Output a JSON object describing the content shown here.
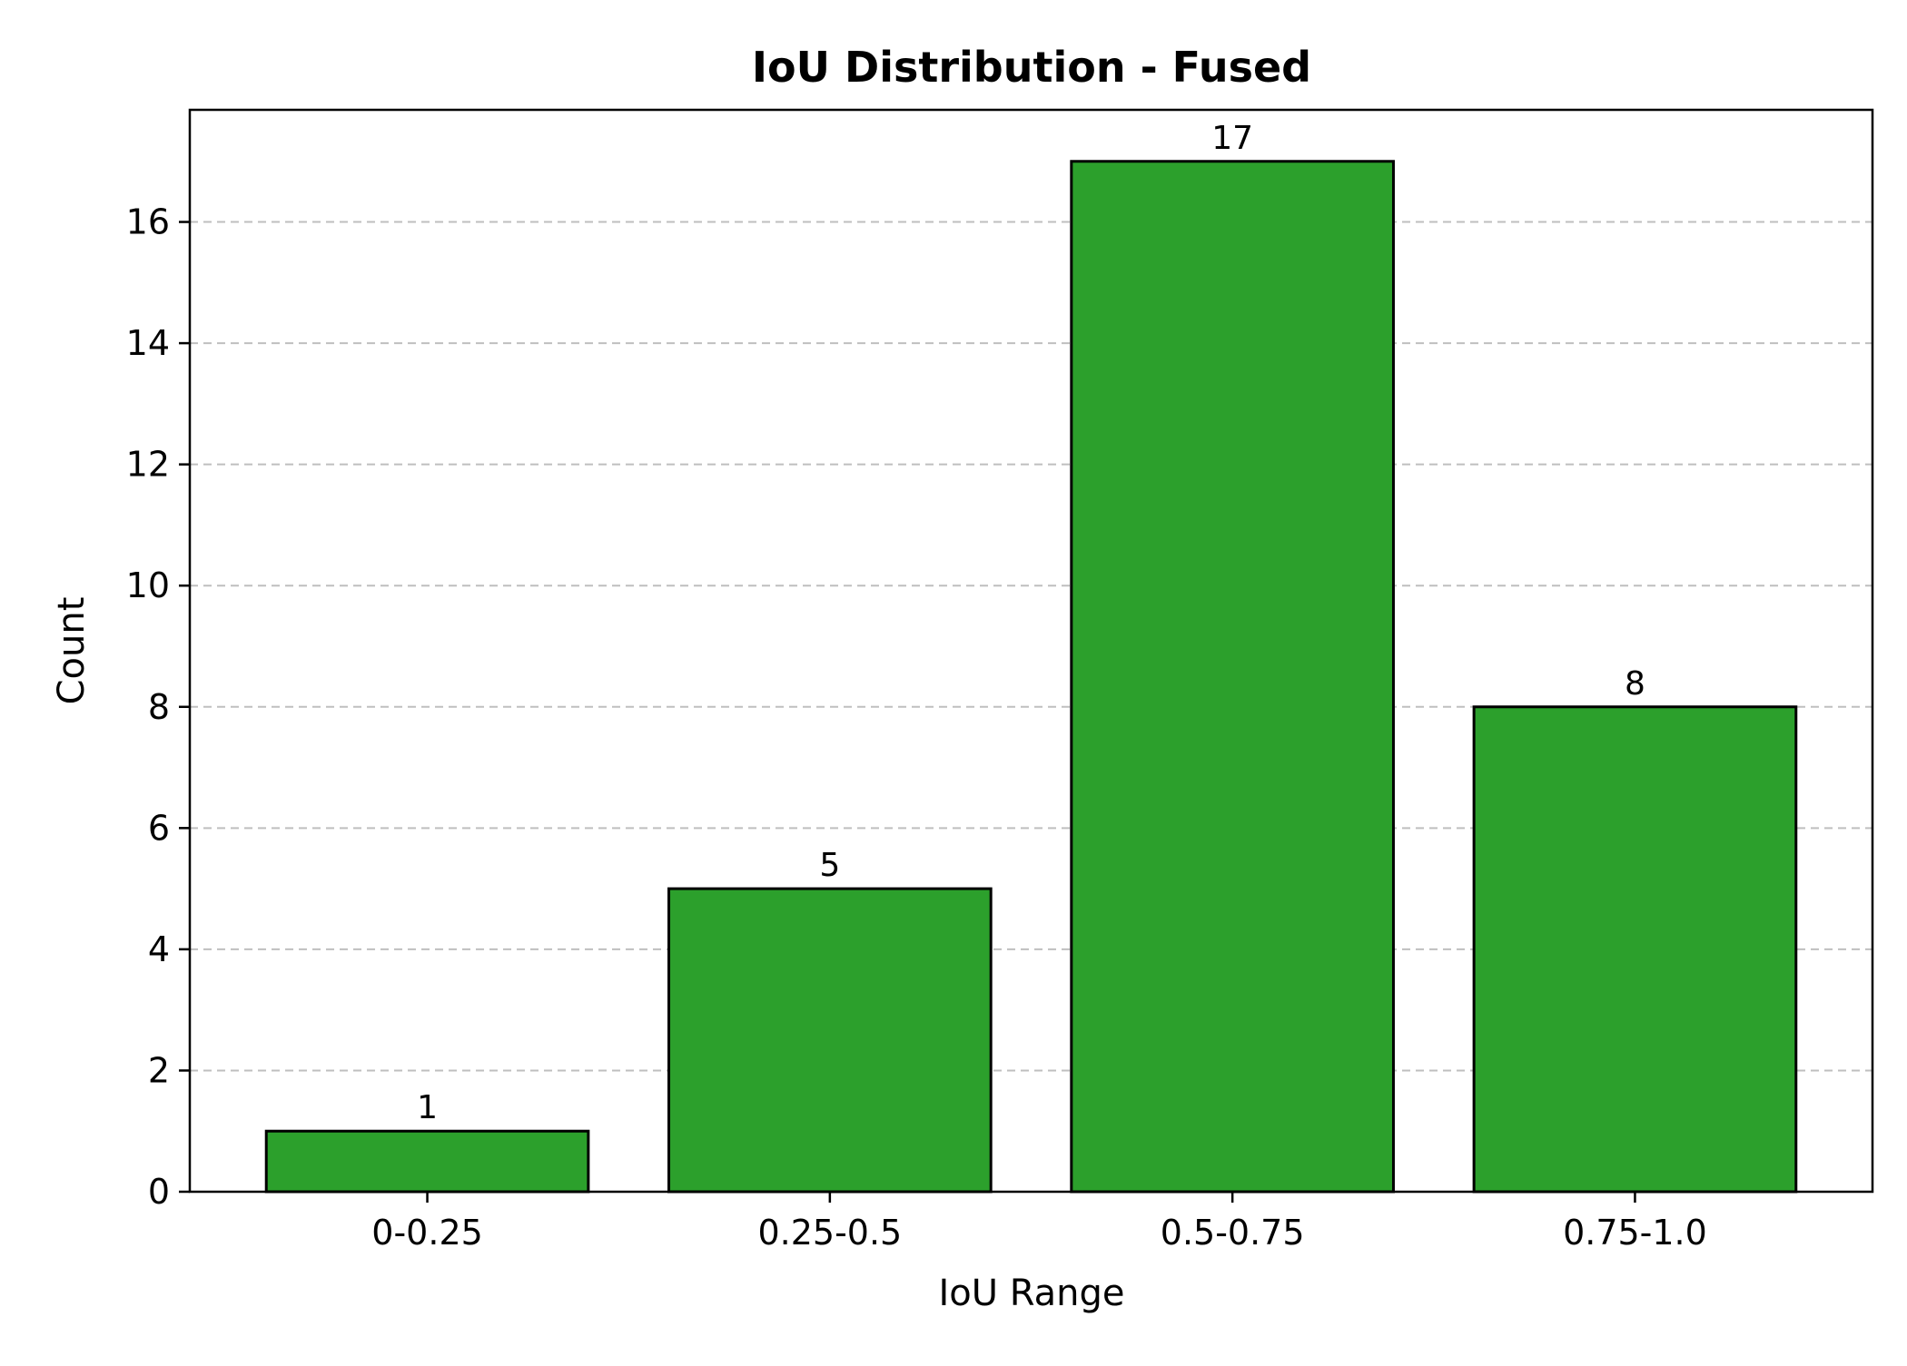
{
  "chart_data": {
    "type": "bar",
    "title": "IoU Distribution - Fused",
    "xlabel": "IoU Range",
    "ylabel": "Count",
    "categories": [
      "0-0.25",
      "0.25-0.5",
      "0.5-0.75",
      "0.75-1.0"
    ],
    "values": [
      1,
      5,
      17,
      8
    ],
    "data_labels": [
      "1",
      "5",
      "17",
      "8"
    ],
    "ylim": [
      0,
      17.85
    ],
    "yticks": [
      0,
      2,
      4,
      6,
      8,
      10,
      12,
      14,
      16
    ],
    "ytick_labels": [
      "0",
      "2",
      "4",
      "6",
      "8",
      "10",
      "12",
      "14",
      "16"
    ],
    "grid": "y-dashed",
    "bar_color": "#2ca02c",
    "edge_color": "#000000"
  }
}
